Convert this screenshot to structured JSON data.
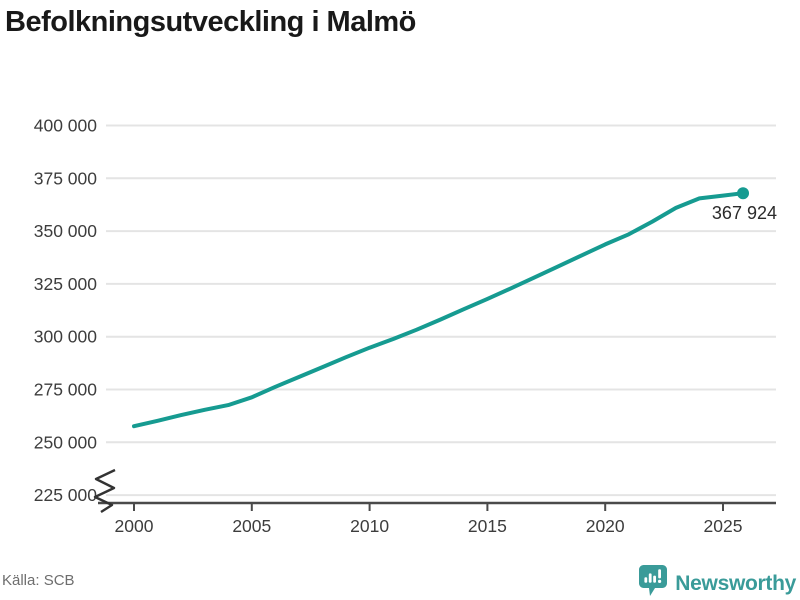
{
  "title": "Befolkningsutveckling i Malmö",
  "footer": {
    "source_label": "Källa: SCB",
    "brand": "Newsworthy"
  },
  "colors": {
    "line": "#169b91",
    "dot": "#169b91",
    "brand_teal": "#3a9b99",
    "grid": "#e4e4e4",
    "axis": "#4a4a4a",
    "tick_text": "#3d3d3d",
    "value_label_text": "#2b2b2b",
    "title_text": "#191919",
    "source_text": "#6e6e6e",
    "logo_glyph": "#ffffff"
  },
  "icons": {
    "brand_logo": "newsworthy-bar-chart-pin-icon"
  },
  "chart_data": {
    "type": "line",
    "title": "Befolkningsutveckling i Malmö",
    "xlabel": "",
    "ylabel": "",
    "grid": "horizontal",
    "legend": "none",
    "axis_break_at_bottom": true,
    "xlim": [
      1998.5,
      2027.3
    ],
    "ylim": [
      225000,
      400000
    ],
    "x": [
      2000,
      2001,
      2002,
      2003,
      2004,
      2005,
      2006,
      2007,
      2008,
      2009,
      2010,
      2011,
      2012,
      2013,
      2014,
      2015,
      2016,
      2017,
      2018,
      2019,
      2020,
      2021,
      2022,
      2023,
      2024,
      2025,
      2025.85
    ],
    "values": [
      257600,
      260200,
      262900,
      265400,
      267600,
      271300,
      276300,
      280900,
      285600,
      290300,
      294800,
      298900,
      303300,
      308100,
      313000,
      317900,
      322900,
      328100,
      333300,
      338500,
      343700,
      348500,
      354500,
      361000,
      365500,
      366800,
      367924
    ],
    "end_point": {
      "x": 2025.85,
      "value": 367924,
      "label": "367 924"
    },
    "yticks": {
      "values": [
        225000,
        250000,
        275000,
        300000,
        325000,
        350000,
        375000,
        400000
      ],
      "labels": [
        "225 000",
        "250 000",
        "275 000",
        "300 000",
        "325 000",
        "350 000",
        "375 000",
        "400 000"
      ]
    },
    "xticks": {
      "values": [
        2000,
        2005,
        2010,
        2015,
        2020,
        2025
      ],
      "labels": [
        "2000",
        "2005",
        "2010",
        "2015",
        "2020",
        "2025"
      ]
    }
  }
}
